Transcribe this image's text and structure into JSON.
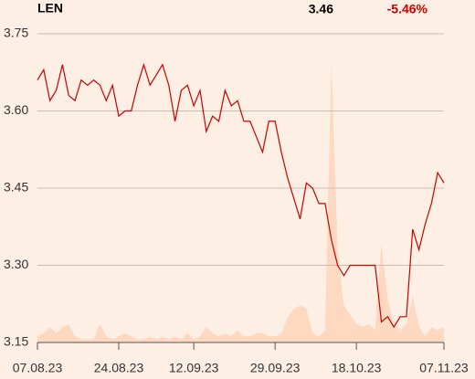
{
  "chart_data": {
    "type": "line",
    "title": "LEN",
    "price_label": "3.46",
    "change_label": "-5.46%",
    "categories": [
      "07.08.23",
      null,
      null,
      null,
      null,
      null,
      null,
      null,
      null,
      null,
      null,
      null,
      null,
      "24.08.23",
      null,
      null,
      null,
      null,
      null,
      null,
      null,
      null,
      null,
      null,
      null,
      "12.09.23",
      null,
      null,
      null,
      null,
      null,
      null,
      null,
      null,
      null,
      null,
      null,
      null,
      "29.09.23",
      null,
      null,
      null,
      null,
      null,
      null,
      null,
      null,
      null,
      null,
      null,
      null,
      "18.10.23",
      null,
      null,
      null,
      null,
      null,
      null,
      null,
      null,
      null,
      null,
      null,
      null,
      null,
      "07.11.23"
    ],
    "series": [
      {
        "color": "#cc0000",
        "values": [
          3.66,
          3.68,
          3.62,
          3.64,
          3.69,
          3.63,
          3.62,
          3.66,
          3.65,
          3.66,
          3.65,
          3.62,
          3.65,
          3.59,
          3.6,
          3.6,
          3.65,
          3.69,
          3.65,
          3.67,
          3.69,
          3.65,
          3.58,
          3.64,
          3.65,
          3.61,
          3.64,
          3.56,
          3.59,
          3.58,
          3.64,
          3.61,
          3.62,
          3.58,
          3.58,
          3.55,
          3.52,
          3.58,
          3.58,
          3.52,
          3.47,
          3.43,
          3.39,
          3.46,
          3.45,
          3.42,
          3.42,
          3.35,
          3.3,
          3.28,
          3.3,
          3.3,
          3.3,
          3.3,
          3.3,
          3.19,
          3.2,
          3.18,
          3.2,
          3.2,
          3.37,
          3.33,
          3.38,
          3.42,
          3.48,
          3.46
        ]
      },
      {
        "color": "#fcd9c0",
        "axis": "y2",
        "values": [
          2,
          3,
          5,
          3,
          5,
          6,
          2,
          1,
          1,
          1,
          6,
          2,
          1,
          2,
          3,
          2,
          1,
          1,
          2,
          1,
          2,
          1,
          2,
          1,
          3,
          1,
          2,
          5,
          3,
          2,
          3,
          2,
          4,
          2,
          2,
          3,
          3,
          2,
          2,
          3,
          8,
          11,
          12,
          11,
          3,
          2,
          4,
          91,
          30,
          12,
          9,
          6,
          5,
          6,
          4,
          32,
          14,
          6,
          4,
          6,
          15,
          5,
          2,
          5,
          4,
          5
        ]
      }
    ],
    "ylim": [
      3.15,
      3.75
    ],
    "yticks": [
      3.15,
      {
        "value": 3.3,
        "label": "3.30"
      },
      3.45,
      {
        "value": 3.6,
        "label": "3.60"
      },
      3.75
    ],
    "y2lim": [
      0,
      100
    ],
    "grid": true
  }
}
